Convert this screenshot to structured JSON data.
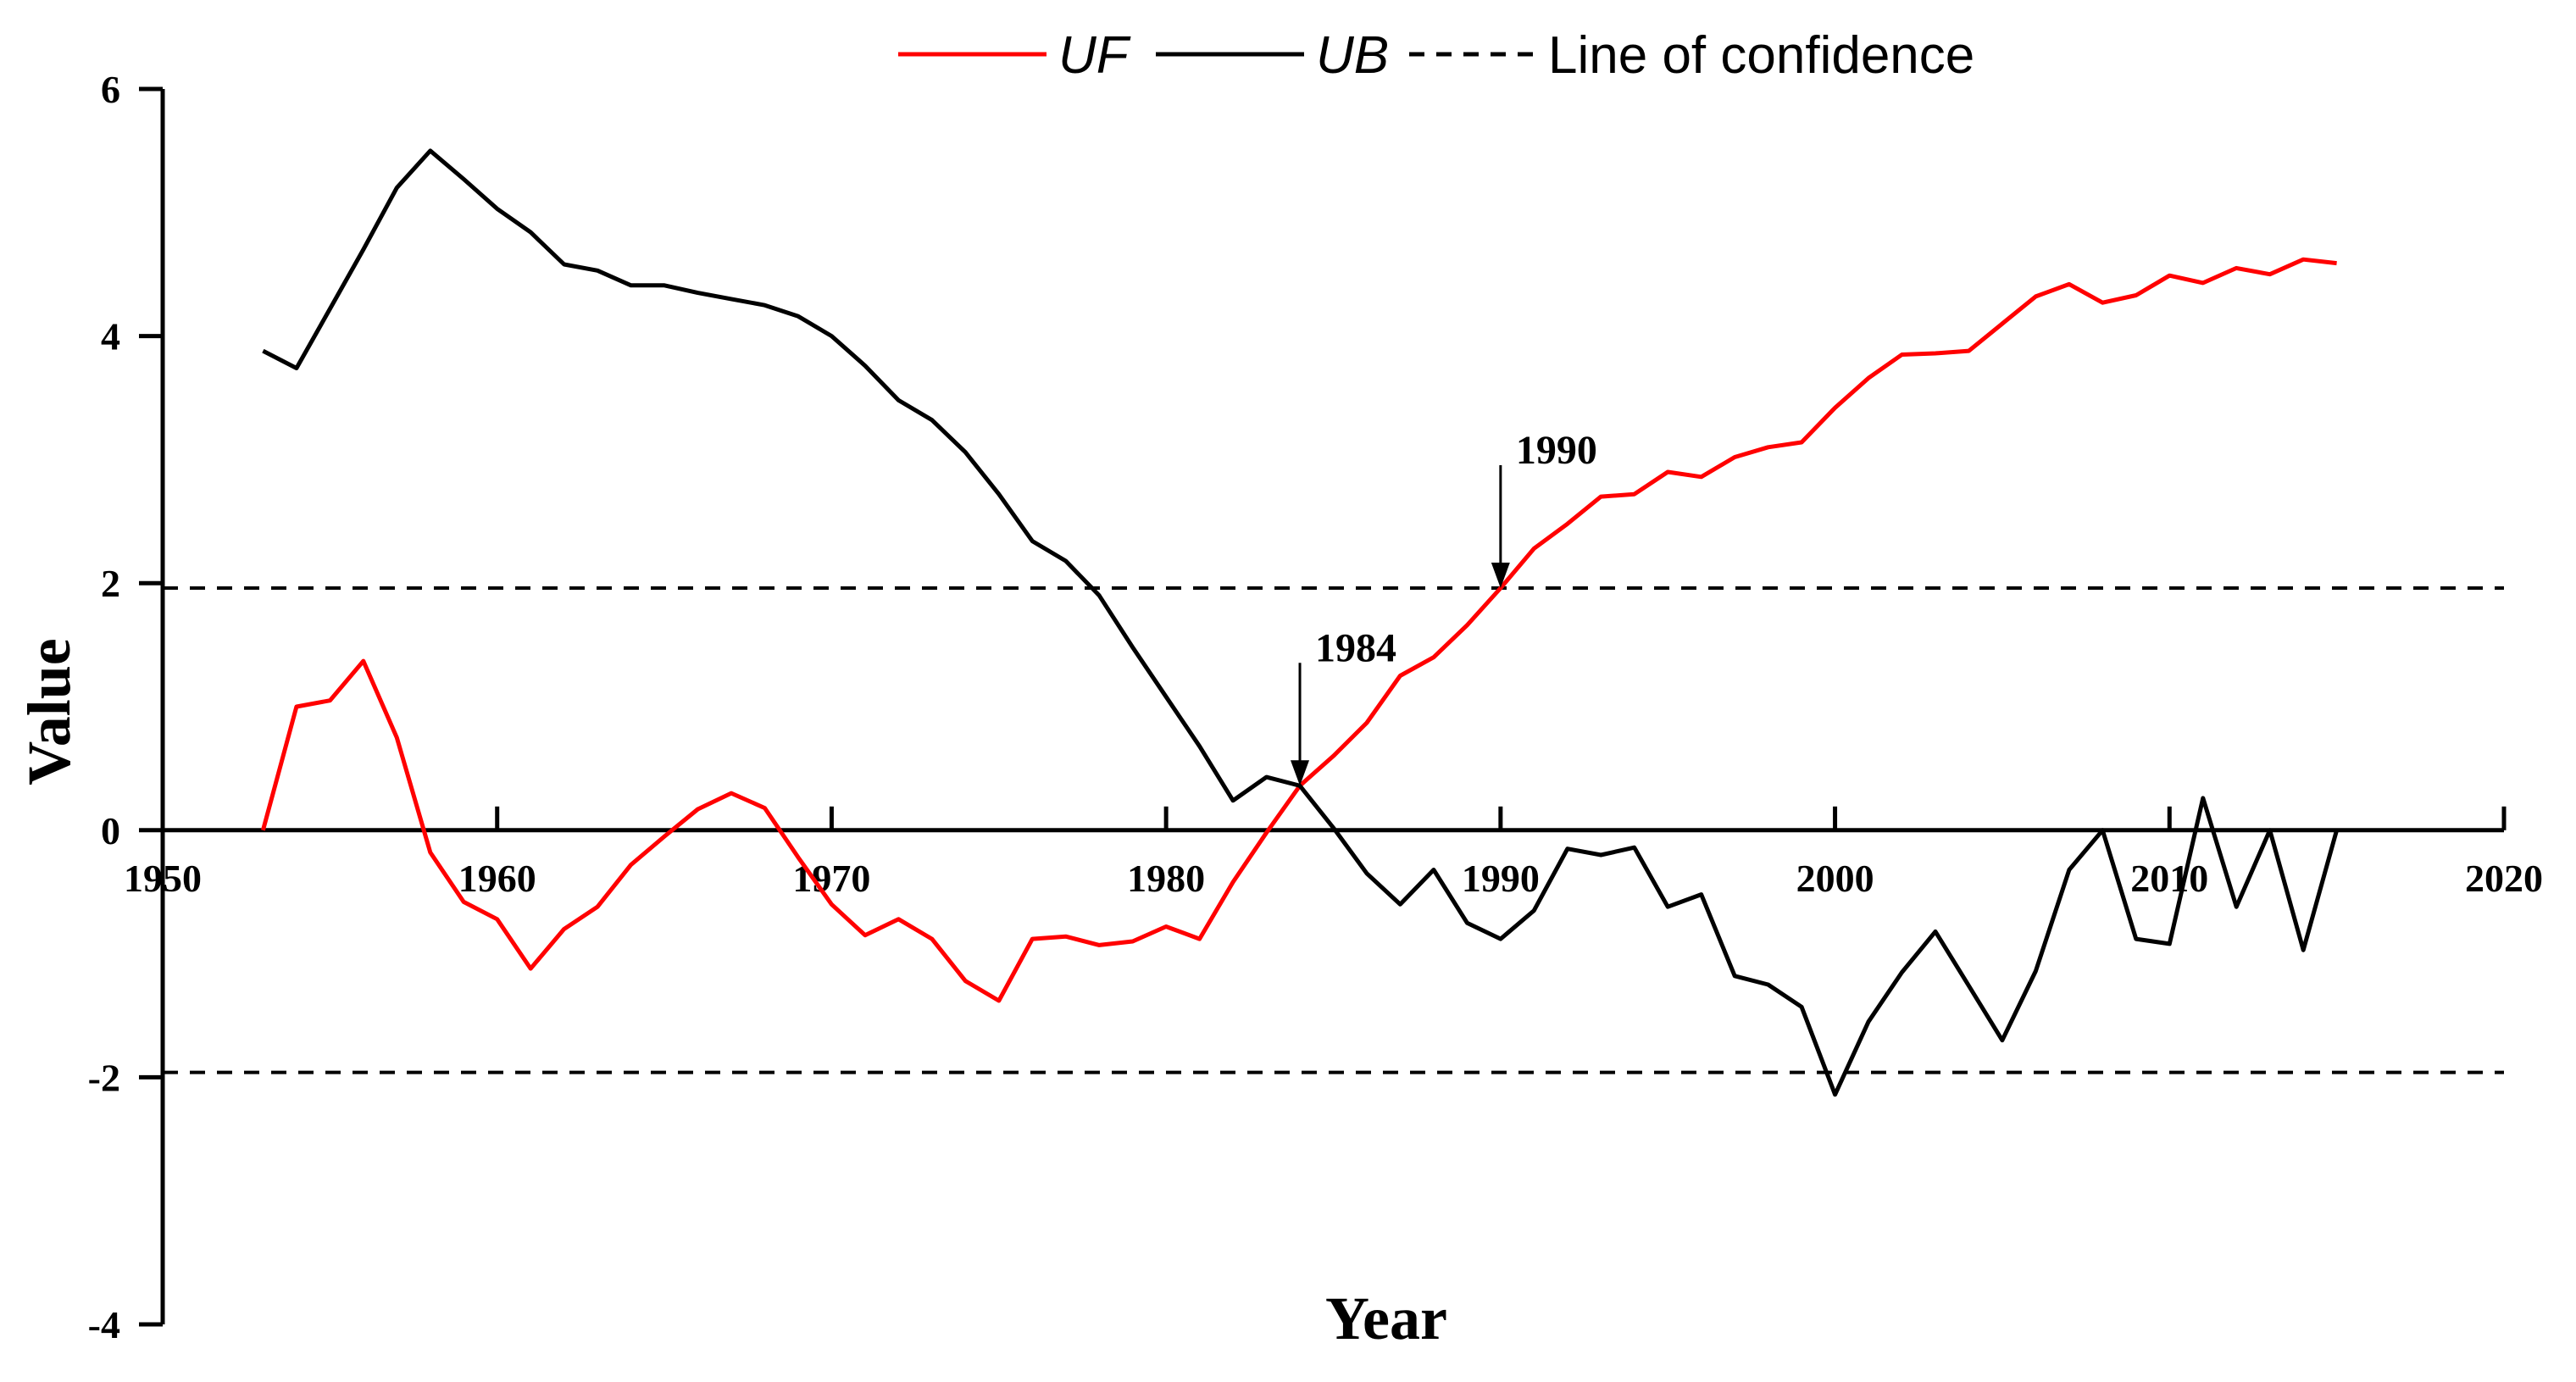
{
  "chart_data": {
    "type": "line",
    "title": "",
    "xlabel": "Year",
    "ylabel": "Value",
    "xlim": [
      1950,
      2020
    ],
    "ylim": [
      -4,
      6
    ],
    "xticks": [
      1950,
      1960,
      1970,
      1980,
      1990,
      2000,
      2010,
      2020
    ],
    "yticks": [
      -4,
      -2,
      0,
      2,
      4,
      6
    ],
    "confidence_levels": [
      1.96,
      -1.96
    ],
    "legend": {
      "placement": "top-center",
      "entries": [
        {
          "label": "UF",
          "style": "solid",
          "color": "#ff0000"
        },
        {
          "label": "UB",
          "style": "solid",
          "color": "#000000"
        },
        {
          "label": "Line of confidence",
          "style": "dashed",
          "color": "#000000"
        }
      ]
    },
    "x": [
      1953,
      1954,
      1955,
      1956,
      1957,
      1958,
      1959,
      1960,
      1961,
      1962,
      1963,
      1964,
      1965,
      1966,
      1967,
      1968,
      1969,
      1970,
      1971,
      1972,
      1973,
      1974,
      1975,
      1976,
      1977,
      1978,
      1979,
      1980,
      1981,
      1982,
      1983,
      1984,
      1985,
      1986,
      1987,
      1988,
      1989,
      1990,
      1991,
      1992,
      1993,
      1994,
      1995,
      1996,
      1997,
      1998,
      1999,
      2000,
      2001,
      2002,
      2003,
      2004,
      2005,
      2006,
      2007,
      2008,
      2009,
      2010,
      2011,
      2012,
      2013,
      2014,
      2015
    ],
    "series": [
      {
        "name": "UF",
        "color": "#ff0000",
        "values": [
          0,
          1.0,
          1.05,
          1.37,
          0.75,
          -0.18,
          -0.58,
          -0.72,
          -1.12,
          -0.8,
          -0.62,
          -0.28,
          -0.05,
          0.17,
          0.3,
          0.18,
          -0.22,
          -0.6,
          -0.85,
          -0.72,
          -0.88,
          -1.22,
          -1.38,
          -0.88,
          -0.86,
          -0.93,
          -0.9,
          -0.78,
          -0.88,
          -0.42,
          -0.02,
          0.36,
          0.6,
          0.87,
          1.25,
          1.4,
          1.66,
          1.96,
          2.28,
          2.48,
          2.7,
          2.72,
          2.9,
          2.86,
          3.02,
          3.1,
          3.14,
          3.42,
          3.66,
          3.85,
          3.86,
          3.88,
          4.1,
          4.32,
          4.42,
          4.27,
          4.33,
          4.49,
          4.43,
          4.55,
          4.5,
          4.62,
          4.59
        ]
      },
      {
        "name": "UB",
        "color": "#000000",
        "values": [
          3.88,
          3.74,
          4.22,
          4.7,
          5.2,
          5.5,
          5.27,
          5.03,
          4.84,
          4.58,
          4.53,
          4.41,
          4.41,
          4.35,
          4.3,
          4.25,
          4.16,
          4.0,
          3.76,
          3.48,
          3.32,
          3.06,
          2.72,
          2.34,
          2.18,
          1.9,
          1.48,
          1.08,
          0.68,
          0.24,
          0.43,
          0.36,
          0.02,
          -0.35,
          -0.6,
          -0.32,
          -0.75,
          -0.88,
          -0.65,
          -0.15,
          -0.2,
          -0.14,
          -0.62,
          -0.52,
          -1.18,
          -1.25,
          -1.43,
          -2.14,
          -1.55,
          -1.15,
          -0.82,
          -1.26,
          -1.7,
          -1.14,
          -0.32,
          0.0,
          -0.88,
          -0.92,
          0.26,
          -0.62,
          0.0,
          -0.97,
          0.0
        ]
      }
    ],
    "annotations": [
      {
        "text": "1984",
        "x": 1984,
        "y": 0.36
      },
      {
        "text": "1990",
        "x": 1990,
        "y": 1.96
      }
    ]
  }
}
